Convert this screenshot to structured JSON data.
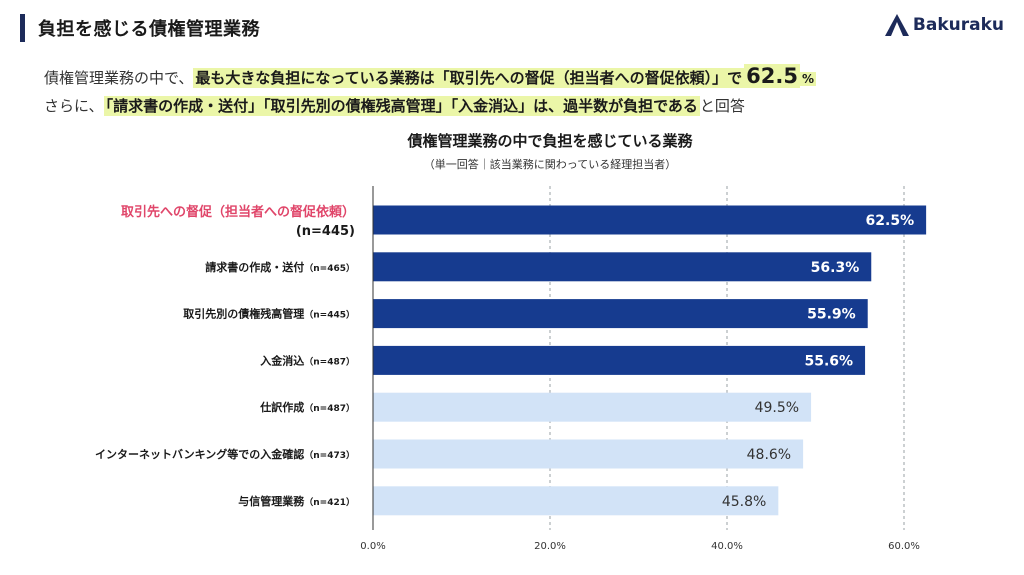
{
  "header": {
    "title": "負担を感じる債権管理業務",
    "logo_text": "Bakuraku"
  },
  "summary": {
    "line1_pre": "債権管理業務の中で、",
    "line1_hl": "最も大きな負担になっている業務は「取引先への督促（担当者への督促依頼）」で",
    "line1_big": "62.5",
    "line1_pct": "%",
    "line2_pre": "さらに、",
    "line2_hl": "「請求書の作成・送付」「取引先別の債権残高管理」「入金消込」は、過半数が負担である",
    "line2_post": "と回答"
  },
  "colors": {
    "top_bar": "#163b8f",
    "other_bar": "#d2e3f7",
    "top_label_text": "#ffffff",
    "other_label_text": "#333333",
    "highlight_category": "#e0466a",
    "axis": "#333333",
    "grid": "#9aa0a6",
    "highlight_bg": "#ebf6a8"
  },
  "chart_data": {
    "type": "bar",
    "orientation": "horizontal",
    "title": "債権管理業務の中で負担を感じている業務",
    "subtitle": "（単一回答｜該当業務に関わっている経理担当者）",
    "categories": [
      "取引先への督促（担当者への督促依頼）",
      "請求書の作成・送付",
      "取引先別の債権残高管理",
      "入金消込",
      "仕訳作成",
      "インターネットバンキング等での入金確認",
      "与信管理業務"
    ],
    "sample_sizes": [
      "(n=445)",
      "（n=465）",
      "（n=445）",
      "（n=487）",
      "（n=487）",
      "（n=473）",
      "（n=421）"
    ],
    "values": [
      62.5,
      56.3,
      55.9,
      55.6,
      49.5,
      48.6,
      45.8
    ],
    "value_labels": [
      "62.5%",
      "56.3%",
      "55.9%",
      "55.6%",
      "49.5%",
      "48.6%",
      "45.8%"
    ],
    "highlighted": [
      true,
      true,
      true,
      true,
      false,
      false,
      false
    ],
    "xlim": [
      0,
      60
    ],
    "xticks": [
      0,
      20,
      40,
      60
    ],
    "xtick_labels": [
      "0.0%",
      "20.0%",
      "40.0%",
      "60.0%"
    ],
    "grid": true
  }
}
